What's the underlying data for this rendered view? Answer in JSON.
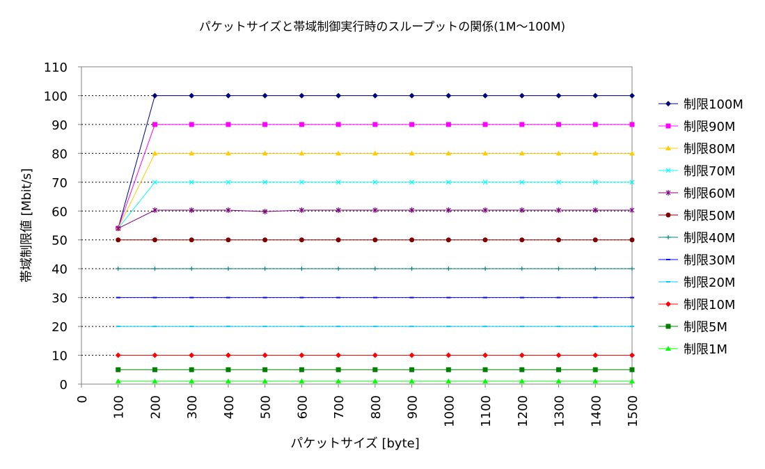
{
  "chart_data": {
    "type": "line",
    "title": "パケットサイズと帯域制御実行時のスループットの関係(1M～100M)",
    "xlabel": "パケットサイズ [byte]",
    "ylabel": "帯域制限値 [Mbit/s]",
    "xlim": [
      0,
      1500
    ],
    "ylim": [
      0,
      110
    ],
    "x_ticks": [
      "0",
      "100",
      "200",
      "300",
      "400",
      "500",
      "600",
      "700",
      "800",
      "900",
      "1000",
      "1100",
      "1200",
      "1300",
      "1400",
      "1500"
    ],
    "y_ticks": [
      "0",
      "10",
      "20",
      "30",
      "40",
      "50",
      "60",
      "70",
      "80",
      "90",
      "100",
      "110"
    ],
    "gridlines": "dotted horizontal at 10–100",
    "legend_position": "right",
    "x": [
      100,
      200,
      300,
      400,
      500,
      600,
      700,
      800,
      900,
      1000,
      1100,
      1200,
      1300,
      1400,
      1500
    ],
    "series": [
      {
        "name": "制限100M",
        "color": "#000080",
        "marker": "diamond",
        "values": [
          54,
          100,
          100,
          100,
          100,
          100,
          100,
          100,
          100,
          100,
          100,
          100,
          100,
          100,
          100
        ]
      },
      {
        "name": "制限90M",
        "color": "#FF00FF",
        "marker": "square",
        "values": [
          54,
          90,
          90,
          90,
          90,
          90,
          90,
          90,
          90,
          90,
          90,
          90,
          90,
          90,
          90
        ]
      },
      {
        "name": "制限80M",
        "color": "#FFCC00",
        "marker": "triangle",
        "values": [
          54,
          80,
          80,
          80,
          80,
          80,
          80,
          80,
          80,
          80,
          80,
          80,
          80,
          80,
          80
        ]
      },
      {
        "name": "制限70M",
        "color": "#00FFFF",
        "marker": "x",
        "values": [
          54,
          70,
          70,
          70,
          70,
          70,
          70,
          70,
          70,
          70,
          70,
          70,
          70,
          70,
          70
        ]
      },
      {
        "name": "制限60M",
        "color": "#800080",
        "marker": "star",
        "values": [
          54,
          60.3,
          60.3,
          60.3,
          59.8,
          60.3,
          60.3,
          60.3,
          60.3,
          60.3,
          60.3,
          60.3,
          60.3,
          60.3,
          60.3
        ]
      },
      {
        "name": "制限50M",
        "color": "#800000",
        "marker": "circle",
        "values": [
          50,
          50,
          50,
          50,
          50,
          50,
          50,
          50,
          50,
          50,
          50,
          50,
          50,
          50,
          50
        ]
      },
      {
        "name": "制限40M",
        "color": "#008080",
        "marker": "plus",
        "values": [
          40,
          40,
          40,
          40,
          40,
          40,
          40,
          40,
          40,
          40,
          40,
          40,
          40,
          40,
          40
        ]
      },
      {
        "name": "制限30M",
        "color": "#0000FF",
        "marker": "dash",
        "values": [
          30,
          30,
          30,
          30,
          30,
          30,
          30,
          30,
          30,
          30,
          30,
          30,
          30,
          30,
          30
        ]
      },
      {
        "name": "制限20M",
        "color": "#00CCFF",
        "marker": "dash",
        "values": [
          20,
          20,
          20,
          20,
          20,
          20,
          20,
          20,
          20,
          20,
          20,
          20,
          20,
          20,
          20
        ]
      },
      {
        "name": "制限10M",
        "color": "#FF0000",
        "marker": "diamond",
        "values": [
          10,
          10,
          10,
          10,
          10,
          10,
          10,
          10,
          10,
          10,
          10,
          10,
          10,
          10,
          10
        ]
      },
      {
        "name": "制限5M",
        "color": "#008000",
        "marker": "square",
        "values": [
          5,
          5,
          5,
          5,
          5,
          5,
          5,
          5,
          5,
          5,
          5,
          5,
          5,
          5,
          5
        ]
      },
      {
        "name": "制限1M",
        "color": "#00FF00",
        "marker": "triangle",
        "values": [
          1,
          1,
          1,
          1,
          1,
          1,
          1,
          1,
          1,
          1,
          1,
          1,
          1,
          1,
          1
        ]
      }
    ]
  }
}
